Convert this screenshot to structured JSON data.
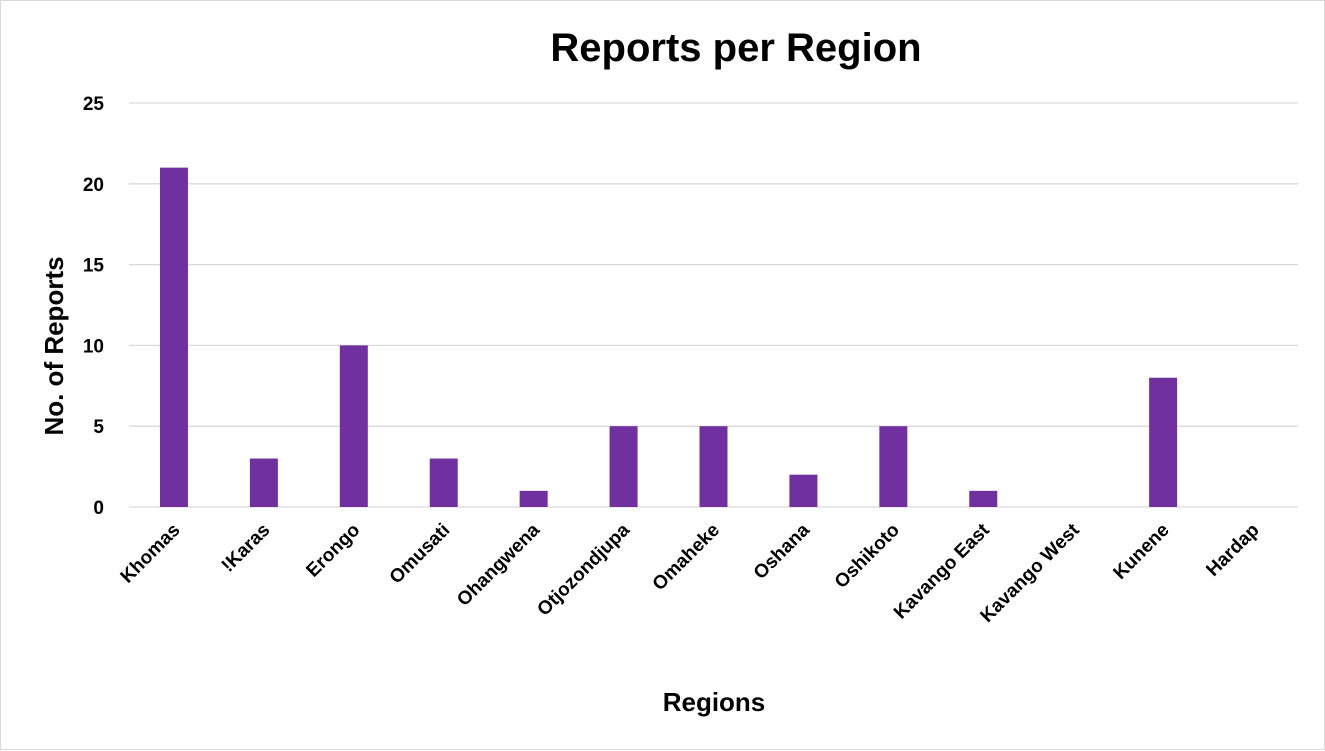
{
  "chart_data": {
    "type": "bar",
    "title": "Reports per Region",
    "xlabel": "Regions",
    "ylabel": "No. of Reports",
    "categories": [
      "Khomas",
      "!Karas",
      "Erongo",
      "Omusati",
      "Ohangwena",
      "Otjozondjupa",
      "Omaheke",
      "Oshana",
      "Oshikoto",
      "Kavango East",
      "Kavango West",
      "Kunene",
      "Hardap"
    ],
    "values": [
      21,
      3,
      10,
      3,
      1,
      5,
      5,
      2,
      5,
      1,
      0,
      8,
      0
    ],
    "ylim": [
      0,
      25
    ],
    "yticks": [
      0,
      5,
      10,
      15,
      20,
      25
    ],
    "grid": true,
    "legend": "none",
    "bar_color": "#7030a0",
    "tick_label_rotation": -45
  }
}
